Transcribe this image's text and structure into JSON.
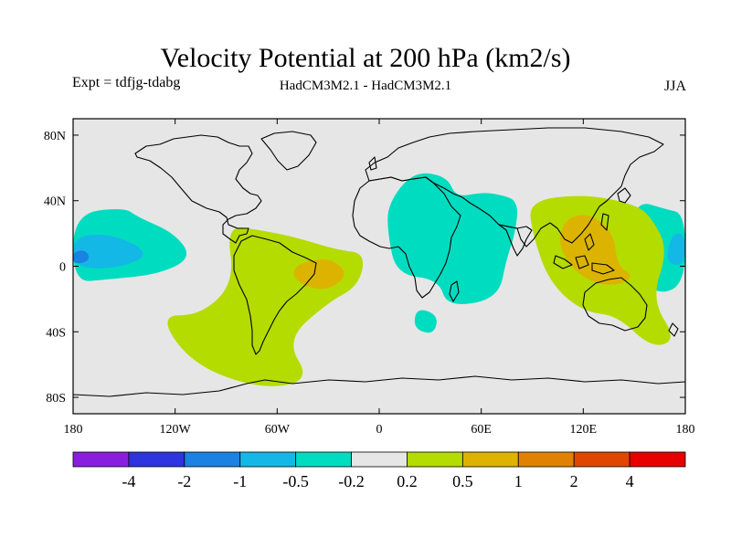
{
  "title": "Velocity Potential at 200 hPa (km2/s)",
  "experiment_label": "Expt = tdfjg-tdabg",
  "model_label": "HadCM3M2.1 - HadCM3M2.1",
  "season_label": "JJA",
  "chart_data": {
    "type": "contour_map",
    "variable": "Velocity Potential",
    "level": "200 hPa",
    "units": "km2/s",
    "x_axis": {
      "range": [
        -180,
        180
      ],
      "ticks": [
        -180,
        -120,
        -60,
        0,
        60,
        120,
        180
      ],
      "tick_labels": [
        "180",
        "120W",
        "60W",
        "0",
        "60E",
        "120E",
        "180"
      ]
    },
    "y_axis": {
      "range": [
        -90,
        90
      ],
      "ticks": [
        80,
        40,
        0,
        -40,
        -80
      ],
      "tick_labels": [
        "80N",
        "40N",
        "0",
        "40S",
        "80S"
      ]
    },
    "colorbar": {
      "boundaries": [
        -4,
        -2,
        -1,
        -0.5,
        -0.2,
        0.2,
        0.5,
        1,
        2,
        4
      ],
      "labels": [
        "-4",
        "-2",
        "-1",
        "-0.5",
        "-0.2",
        "0.2",
        "0.5",
        "1",
        "2",
        "4"
      ],
      "colors": [
        "#8a1ee0",
        "#2d34e0",
        "#1a82e2",
        "#14b8e6",
        "#00dcc0",
        "#e6e6e6",
        "#b4dc00",
        "#dcb400",
        "#e08200",
        "#e04600",
        "#e60000"
      ]
    },
    "regions": [
      {
        "name": "east-pacific-negative",
        "level": "-0.2..-0.5",
        "polygon": [
          [
            -180,
            32
          ],
          [
            -150,
            36
          ],
          [
            -142,
            30
          ],
          [
            -120,
            20
          ],
          [
            -110,
            5
          ],
          [
            -130,
            -5
          ],
          [
            -160,
            -8
          ],
          [
            -180,
            -10
          ]
        ]
      },
      {
        "name": "east-pacific-core",
        "level": "-0.5..-1",
        "polygon": [
          [
            -180,
            18
          ],
          [
            -160,
            20
          ],
          [
            -140,
            12
          ],
          [
            -138,
            4
          ],
          [
            -160,
            -2
          ],
          [
            -180,
            0
          ]
        ]
      },
      {
        "name": "east-pacific-inner",
        "level": "-1..-2",
        "polygon": [
          [
            -180,
            9
          ],
          [
            -172,
            10
          ],
          [
            -170,
            3
          ],
          [
            -180,
            1
          ]
        ]
      },
      {
        "name": "africa-indian-negative",
        "level": "-0.2..-0.5",
        "polygon": [
          [
            5,
            38
          ],
          [
            20,
            58
          ],
          [
            40,
            55
          ],
          [
            45,
            42
          ],
          [
            60,
            45
          ],
          [
            70,
            44
          ],
          [
            82,
            40
          ],
          [
            80,
            20
          ],
          [
            75,
            5
          ],
          [
            70,
            -20
          ],
          [
            40,
            -25
          ],
          [
            35,
            -8
          ],
          [
            10,
            -5
          ],
          [
            5,
            20
          ]
        ]
      },
      {
        "name": "south-atlantic-negative",
        "level": "-0.2..-0.5",
        "polygon": [
          [
            22,
            -25
          ],
          [
            35,
            -30
          ],
          [
            32,
            -42
          ],
          [
            20,
            -38
          ]
        ]
      },
      {
        "name": "west-pacific-negative",
        "level": "-0.2..-0.5",
        "polygon": [
          [
            152,
            40
          ],
          [
            168,
            35
          ],
          [
            180,
            32
          ],
          [
            180,
            -10
          ],
          [
            165,
            -18
          ],
          [
            150,
            -5
          ],
          [
            148,
            20
          ]
        ]
      },
      {
        "name": "west-pacific-core",
        "level": "-0.5..-1",
        "polygon": [
          [
            172,
            20
          ],
          [
            180,
            20
          ],
          [
            180,
            0
          ],
          [
            168,
            2
          ]
        ]
      },
      {
        "name": "south-atlantic-positive",
        "level": "0.2..0.5",
        "polygon": [
          [
            -90,
            25
          ],
          [
            -70,
            22
          ],
          [
            -50,
            18
          ],
          [
            -25,
            10
          ],
          [
            -8,
            8
          ],
          [
            -12,
            -12
          ],
          [
            -30,
            -22
          ],
          [
            -55,
            -45
          ],
          [
            -40,
            -70
          ],
          [
            -70,
            -75
          ],
          [
            -110,
            -60
          ],
          [
            -130,
            -30
          ],
          [
            -105,
            -30
          ],
          [
            -85,
            -10
          ]
        ]
      },
      {
        "name": "brazil-core",
        "level": "0.5..1",
        "polygon": [
          [
            -45,
            3
          ],
          [
            -28,
            5
          ],
          [
            -18,
            -5
          ],
          [
            -30,
            -15
          ],
          [
            -45,
            -12
          ],
          [
            -52,
            -4
          ]
        ]
      },
      {
        "name": "maritime-positive",
        "level": "0.2..0.5",
        "polygon": [
          [
            88,
            40
          ],
          [
            120,
            44
          ],
          [
            150,
            38
          ],
          [
            160,
            30
          ],
          [
            170,
            10
          ],
          [
            160,
            -20
          ],
          [
            175,
            -45
          ],
          [
            160,
            -50
          ],
          [
            140,
            -30
          ],
          [
            120,
            -28
          ],
          [
            100,
            -10
          ],
          [
            90,
            20
          ]
        ]
      },
      {
        "name": "maritime-core",
        "level": "0.5..1",
        "polygon": [
          [
            110,
            30
          ],
          [
            125,
            32
          ],
          [
            138,
            20
          ],
          [
            140,
            0
          ],
          [
            150,
            -6
          ],
          [
            140,
            -12
          ],
          [
            125,
            -10
          ],
          [
            112,
            0
          ],
          [
            105,
            15
          ]
        ]
      }
    ]
  },
  "fills": {
    "ocean": "#e6e6e6"
  }
}
